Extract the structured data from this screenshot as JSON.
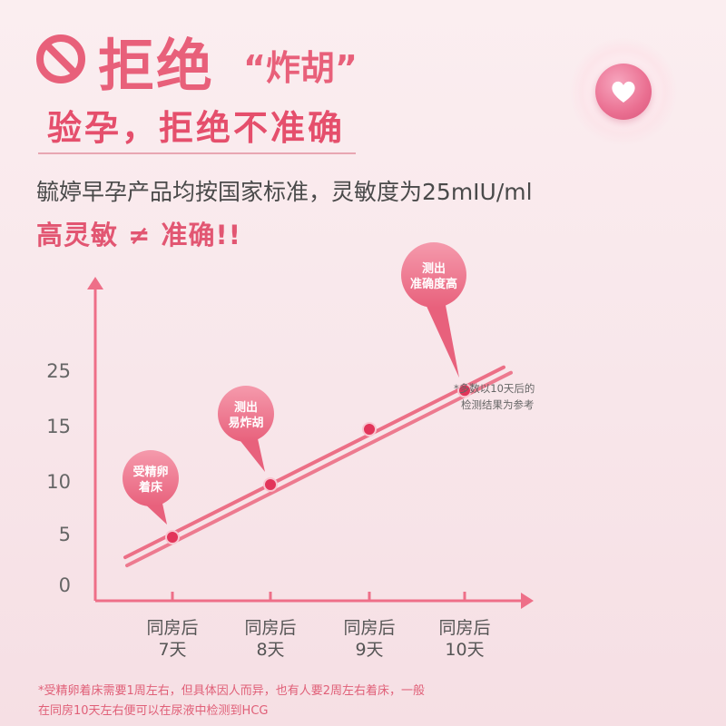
{
  "header": {
    "title": "拒绝",
    "quote": "“炸胡”",
    "subtitle": "验孕，拒绝不准确"
  },
  "info": "毓婷早孕产品均按国家标准，灵敏度为25mIU/ml",
  "tagline": "高灵敏 ≠ 准确!!",
  "icons": {
    "ban": "ban-icon",
    "heart": "heart-icon"
  },
  "colors": {
    "accent": "#e8607a",
    "line": "#ec6f86",
    "point": "#e2355a",
    "bubble": "#ee7d93"
  },
  "chart_data": {
    "type": "line",
    "title": "",
    "xlabel": "",
    "ylabel": "",
    "yticks": [
      0,
      5,
      10,
      15,
      25
    ],
    "categories": [
      "同房后\n7天",
      "同房后\n8天",
      "同房后\n9天",
      "同房后\n10天"
    ],
    "values": [
      5,
      10,
      15,
      22
    ],
    "annotations": [
      {
        "index": 0,
        "text": "受精卵\n着床"
      },
      {
        "index": 1,
        "text": "测出\n易炸胡"
      },
      {
        "index": 3,
        "text": "测出\n准确度高"
      }
    ],
    "note": "*多数以10天后的\n检测结果为参考",
    "grid": false,
    "legend": "none"
  },
  "footnote": [
    "*受精卵着床需要1周左右，但具体因人而异，也有人要2周左右着床，一般",
    "在同房10天左右便可以在尿液中检测到HCG"
  ]
}
